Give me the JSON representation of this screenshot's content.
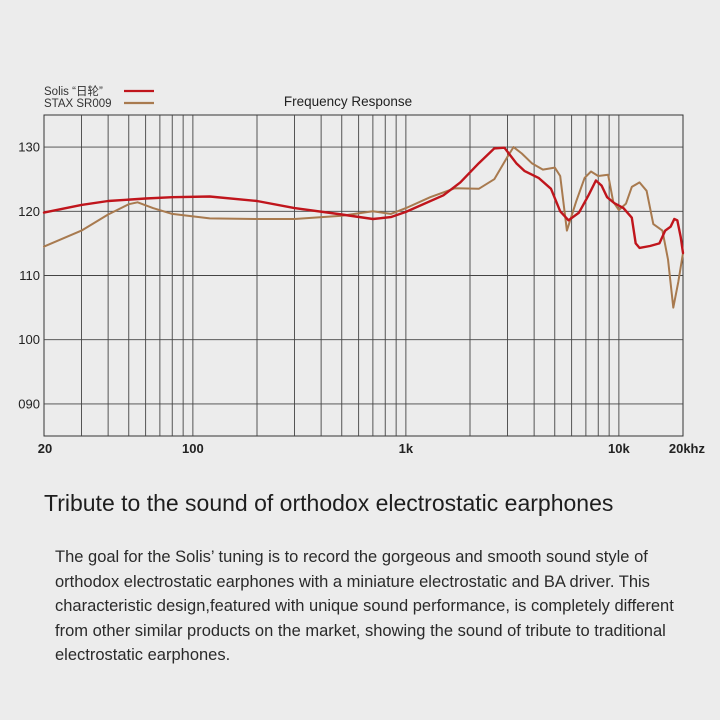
{
  "chart_data": {
    "type": "line",
    "title": "Frequency Response",
    "xscale": "log",
    "xlim": [
      20,
      20000
    ],
    "ylim": [
      85,
      135
    ],
    "grid": true,
    "legend_position": "top-left",
    "xticks": [
      {
        "value": 20,
        "label": "20"
      },
      {
        "value": 100,
        "label": "100"
      },
      {
        "value": 1000,
        "label": "1k"
      },
      {
        "value": 10000,
        "label": "10k"
      },
      {
        "value": 20000,
        "label": "20khz"
      }
    ],
    "yticks": [
      {
        "value": 90,
        "label": "090"
      },
      {
        "value": 100,
        "label": "100"
      },
      {
        "value": 110,
        "label": "110"
      },
      {
        "value": 120,
        "label": "120"
      },
      {
        "value": 130,
        "label": "130"
      }
    ],
    "series": [
      {
        "name": "Solis “日轮”",
        "color": "#c0151c",
        "points": [
          [
            20,
            119.8
          ],
          [
            30,
            121
          ],
          [
            40,
            121.6
          ],
          [
            60,
            122
          ],
          [
            80,
            122.2
          ],
          [
            120,
            122.3
          ],
          [
            200,
            121.6
          ],
          [
            300,
            120.5
          ],
          [
            500,
            119.5
          ],
          [
            700,
            118.8
          ],
          [
            850,
            119.1
          ],
          [
            1000,
            119.9
          ],
          [
            1500,
            122.5
          ],
          [
            1800,
            124.5
          ],
          [
            2200,
            127.5
          ],
          [
            2600,
            129.8
          ],
          [
            2900,
            129.9
          ],
          [
            3300,
            127.5
          ],
          [
            3600,
            126.3
          ],
          [
            4200,
            125.2
          ],
          [
            4800,
            123.5
          ],
          [
            5300,
            120
          ],
          [
            5800,
            118.6
          ],
          [
            6500,
            119.8
          ],
          [
            7200,
            122.5
          ],
          [
            7800,
            124.8
          ],
          [
            8300,
            124
          ],
          [
            8800,
            122.2
          ],
          [
            9500,
            121.3
          ],
          [
            10500,
            120.5
          ],
          [
            11500,
            119
          ],
          [
            12000,
            115
          ],
          [
            12500,
            114.3
          ],
          [
            14000,
            114.6
          ],
          [
            15500,
            115
          ],
          [
            16500,
            117
          ],
          [
            17500,
            117.6
          ],
          [
            18200,
            118.8
          ],
          [
            18800,
            118.6
          ],
          [
            19500,
            116
          ],
          [
            20000,
            113.5
          ]
        ]
      },
      {
        "name": "STAX SR009",
        "color": "#a87a4f",
        "points": [
          [
            20,
            114.5
          ],
          [
            30,
            117
          ],
          [
            40,
            119.5
          ],
          [
            50,
            121.1
          ],
          [
            55,
            121.4
          ],
          [
            65,
            120.5
          ],
          [
            80,
            119.6
          ],
          [
            120,
            118.9
          ],
          [
            200,
            118.8
          ],
          [
            300,
            118.8
          ],
          [
            500,
            119.3
          ],
          [
            700,
            120
          ],
          [
            850,
            119.6
          ],
          [
            1000,
            120.5
          ],
          [
            1300,
            122.2
          ],
          [
            1700,
            123.6
          ],
          [
            2200,
            123.5
          ],
          [
            2600,
            125
          ],
          [
            3000,
            128.5
          ],
          [
            3200,
            130
          ],
          [
            3500,
            129
          ],
          [
            3900,
            127.5
          ],
          [
            4400,
            126.5
          ],
          [
            5000,
            126.8
          ],
          [
            5300,
            125.5
          ],
          [
            5700,
            117
          ],
          [
            6300,
            121.5
          ],
          [
            6900,
            125.2
          ],
          [
            7400,
            126.2
          ],
          [
            8000,
            125.5
          ],
          [
            8900,
            125.7
          ],
          [
            9400,
            121.5
          ],
          [
            10000,
            120.2
          ],
          [
            10800,
            121.2
          ],
          [
            11500,
            123.8
          ],
          [
            12500,
            124.5
          ],
          [
            13500,
            123.2
          ],
          [
            14500,
            118
          ],
          [
            16000,
            117
          ],
          [
            17000,
            112.5
          ],
          [
            18000,
            105
          ],
          [
            19000,
            109
          ],
          [
            20000,
            113.5
          ]
        ]
      }
    ]
  },
  "text": {
    "headline": "Tribute to the sound of orthodox electrostatic earphones",
    "description": "The goal for the Solis’   tuning is to record the gorgeous and  smooth sound style of orthodox electrostatic earphones with a miniature electrostatic and BA driver. This characteristic design,featured with unique sound performance, is completely different from other similar products on the market, showing the sound of tribute to traditional electrostatic earphones."
  }
}
